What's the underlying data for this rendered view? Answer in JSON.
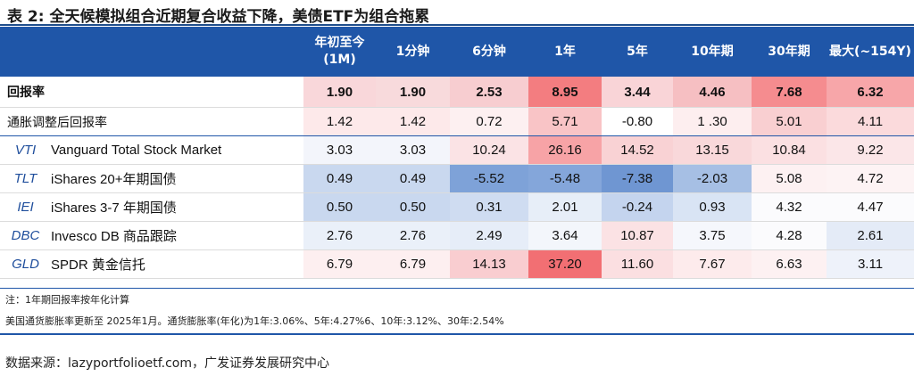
{
  "title": "表 2:  全天候模拟组合近期复合收益下降，美债ETF为组合拖累",
  "header": {
    "columns": [
      "年初至今\n(1M)",
      "1分钟",
      "6分钟",
      "1年",
      "5年",
      "10年期",
      "30年期",
      "最大(~154Y)"
    ]
  },
  "portfolio_rows": [
    {
      "label": "回报率",
      "bold": true,
      "values": [
        "1.90",
        "1.90",
        "2.53",
        "8.95",
        "3.44",
        "4.46",
        "7.68",
        "6.32"
      ],
      "colors": [
        "#f9d7da",
        "#f8dadc",
        "#f7cdd0",
        "#f37d80",
        "#f9d4d7",
        "#f6bfc2",
        "#f58c8f",
        "#f7a6a9"
      ]
    },
    {
      "label": "通胀调整后回报率",
      "bold": false,
      "values": [
        "1.42",
        "1.42",
        "0.72",
        "5.71",
        "-0.80",
        "1 .30",
        "5.01",
        "4.11"
      ],
      "colors": [
        "#fde9ea",
        "#fde9ea",
        "#fdf0f1",
        "#f9c4c6",
        "#ffffff",
        "#fdeeef",
        "#f9cfd1",
        "#fbdadc"
      ]
    }
  ],
  "fund_rows": [
    {
      "ticker": "VTI",
      "name": "Vanguard Total Stock Market",
      "values": [
        "3.03",
        "3.03",
        "10.24",
        "26.16",
        "14.52",
        "13.15",
        "10.84",
        "9.22"
      ],
      "colors": [
        "#f3f5fb",
        "#f3f5fb",
        "#fbe3e5",
        "#f7a3a6",
        "#f9d2d4",
        "#f9d8da",
        "#fbe0e2",
        "#fbe6e8"
      ]
    },
    {
      "ticker": "TLT",
      "name": "iShares 20+年期国债",
      "values": [
        "0.49",
        "0.49",
        "-5.52",
        "-5.48",
        "-7.38",
        "-2.03",
        "5.08",
        "4.72"
      ],
      "colors": [
        "#c9d8ef",
        "#c9d8ef",
        "#7ea2d8",
        "#84a6da",
        "#6f96d2",
        "#a6bfe4",
        "#fdf1f2",
        "#fdf3f4"
      ]
    },
    {
      "ticker": "IEI",
      "name": "iShares 3-7 年期国债",
      "values": [
        "0.50",
        "0.50",
        "0.31",
        "2.01",
        "-0.24",
        "0.93",
        "4.32",
        "4.47"
      ],
      "colors": [
        "#c9d8ef",
        "#c9d8ef",
        "#cfdcf1",
        "#e7eef8",
        "#c4d4ee",
        "#d9e4f4",
        "#fbfbfd",
        "#fbfbfd"
      ]
    },
    {
      "ticker": "DBC",
      "name": "Invesco DB 商品跟踪",
      "values": [
        "2.76",
        "2.76",
        "2.49",
        "3.64",
        "10.87",
        "3.75",
        "4.28",
        "2.61"
      ],
      "colors": [
        "#eaf0f9",
        "#eaf0f9",
        "#e6edf8",
        "#f3f6fb",
        "#fbe2e4",
        "#f5f7fc",
        "#fbfbfd",
        "#e4ebf7"
      ]
    },
    {
      "ticker": "GLD",
      "name": "SPDR 黄金信托",
      "values": [
        "6.79",
        "6.79",
        "14.13",
        "37.20",
        "11.60",
        "7.67",
        "6.63",
        "3.11"
      ],
      "colors": [
        "#fdeff0",
        "#fdeff0",
        "#f9cdd0",
        "#f26f73",
        "#fbdfe1",
        "#fdebec",
        "#fdf1f2",
        "#eef2fa"
      ]
    }
  ],
  "notes": [
    "注：1年期回报率按年化计算",
    "美国通货膨胀率更新至 2025年1月。通货膨胀率(年化)为1年:3.06%、5年:4.27%6、10年:3.12%、30年:2.54%"
  ],
  "source": "数据来源：lazyportfolioetf.com，广发证券发展研究中心"
}
